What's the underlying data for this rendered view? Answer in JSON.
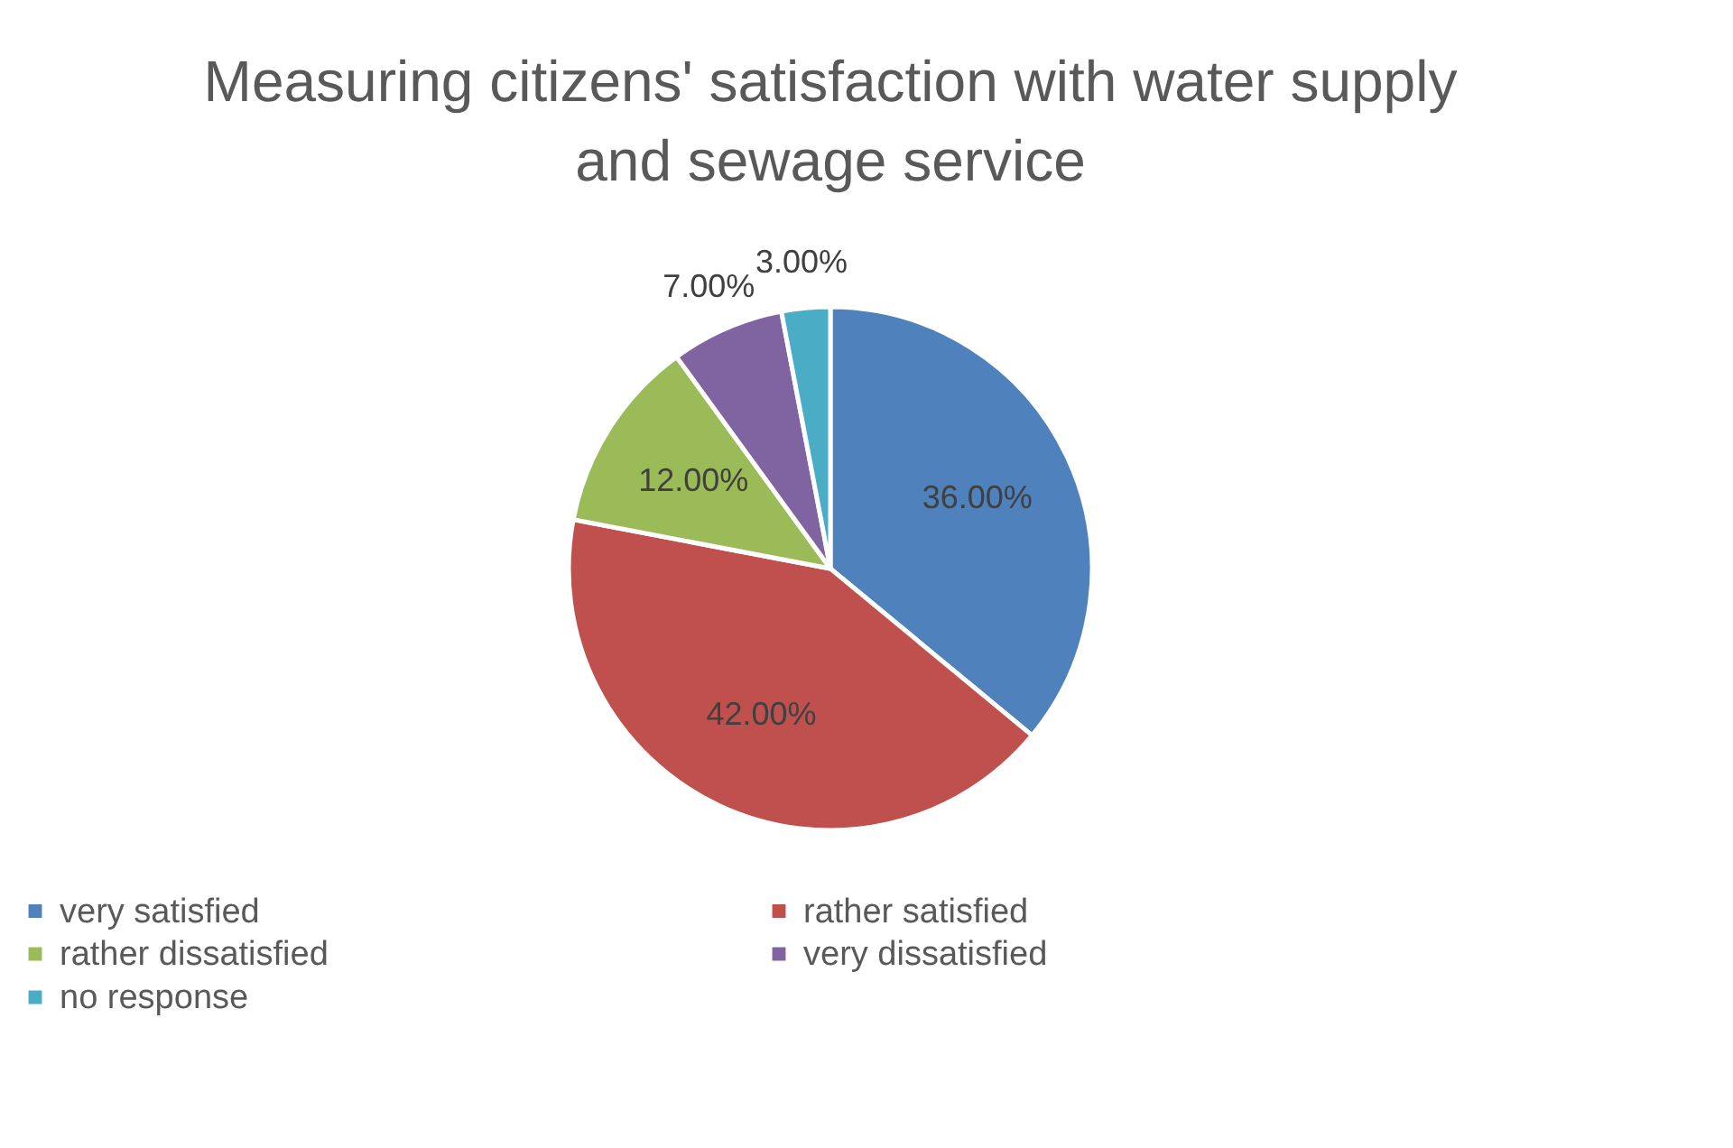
{
  "chart_data": {
    "type": "pie",
    "title": "Measuring citizens' satisfaction with water supply and sewage service",
    "categories": [
      "very satisfied",
      "rather satisfied",
      "rather dissatisfied",
      "very dissatisfied",
      "no response"
    ],
    "values": [
      36,
      42,
      12,
      7,
      3
    ],
    "colors": [
      "#4f81bd",
      "#c0504d",
      "#9bbb59",
      "#8064a2",
      "#4bacc6"
    ],
    "value_labels": [
      "36.00%",
      "42.00%",
      "12.00%",
      "7.00%",
      "3.00%"
    ],
    "legend": "bottom"
  }
}
